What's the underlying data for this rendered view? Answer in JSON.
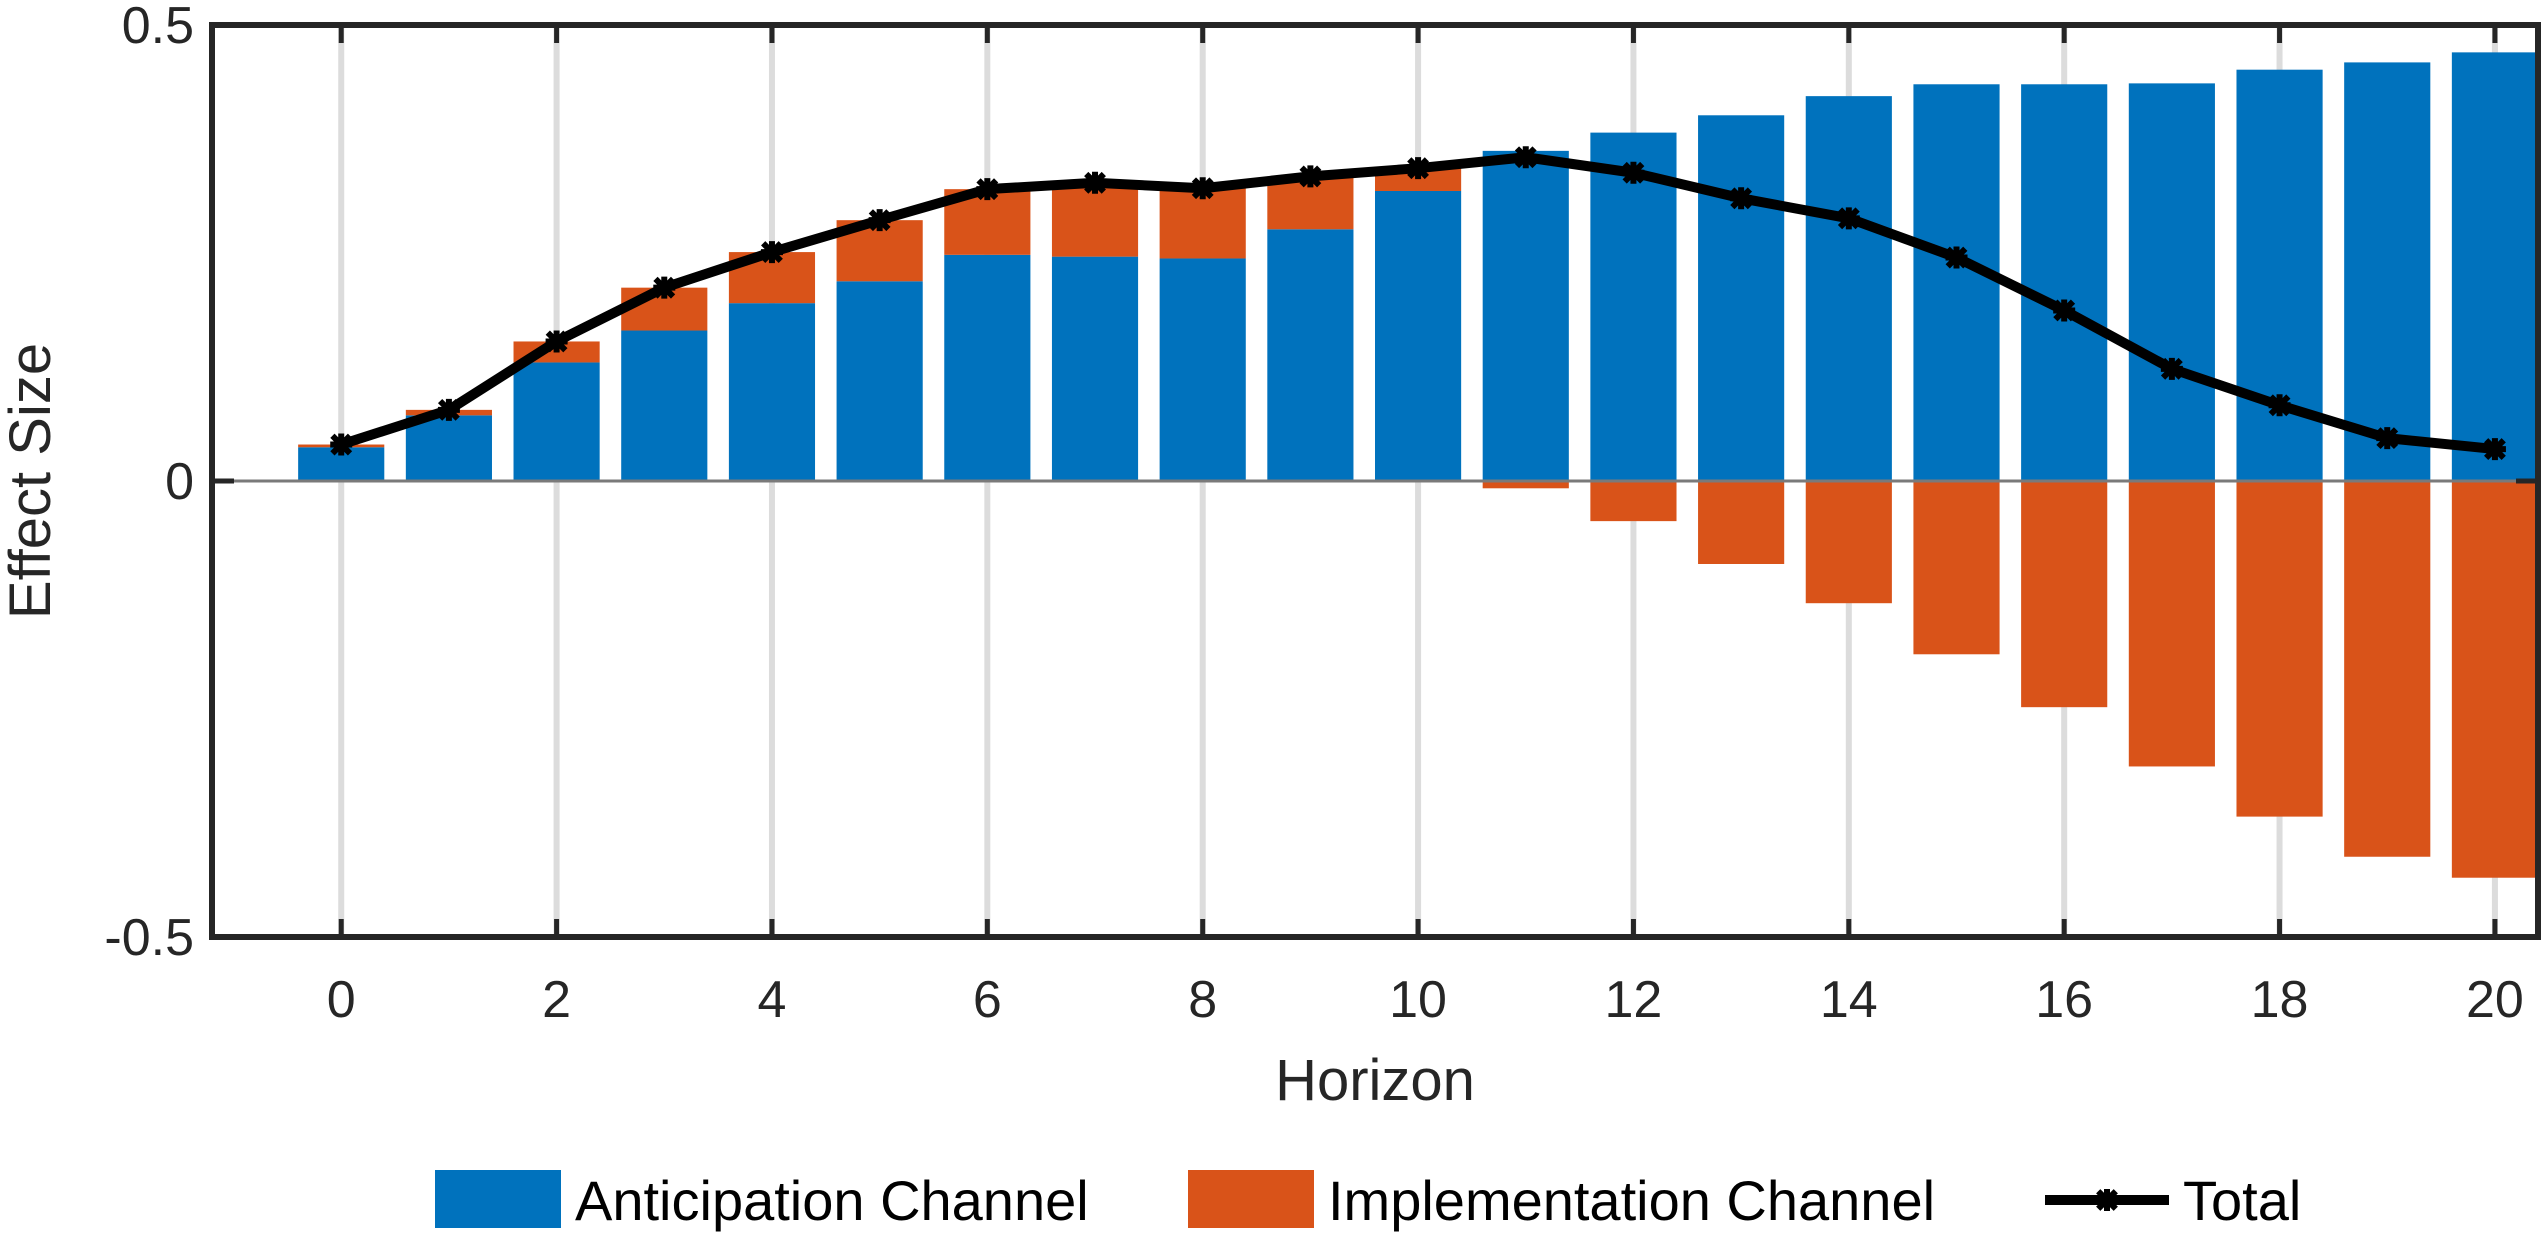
{
  "chart_data": {
    "type": "bar",
    "subtype": "stacked-bar-with-line",
    "title": "",
    "xlabel": "Horizon",
    "ylabel": "Effect Size",
    "x": [
      0,
      1,
      2,
      3,
      4,
      5,
      6,
      7,
      8,
      9,
      10,
      11,
      12,
      13,
      14,
      15,
      16,
      17,
      18,
      19,
      20
    ],
    "xlim": [
      -1.2,
      20.4
    ],
    "ylim": [
      -0.5,
      0.5
    ],
    "xticks": [
      0,
      2,
      4,
      6,
      8,
      10,
      12,
      14,
      16,
      18,
      20
    ],
    "xtick_labels": [
      "0",
      "2",
      "4",
      "6",
      "8",
      "10",
      "12",
      "14",
      "16",
      "18",
      "20"
    ],
    "yticks": [
      -0.5,
      0,
      0.5
    ],
    "ytick_labels": [
      "-0.5",
      "0",
      "0.5"
    ],
    "grid": "vertical",
    "legend_position": "bottom",
    "series": [
      {
        "name": "Anticipation Channel",
        "kind": "bar",
        "color": "#0072BD",
        "values": [
          0.037,
          0.072,
          0.13,
          0.165,
          0.195,
          0.219,
          0.248,
          0.246,
          0.244,
          0.276,
          0.318,
          0.362,
          0.382,
          0.401,
          0.422,
          0.435,
          0.435,
          0.436,
          0.451,
          0.459,
          0.47
        ]
      },
      {
        "name": "Implementation Channel",
        "kind": "bar",
        "color": "#D95319",
        "values": [
          0.003,
          0.006,
          0.023,
          0.047,
          0.056,
          0.067,
          0.072,
          0.081,
          0.077,
          0.058,
          0.025,
          -0.008,
          -0.044,
          -0.091,
          -0.134,
          -0.19,
          -0.248,
          -0.313,
          -0.368,
          -0.412,
          -0.435
        ]
      },
      {
        "name": "Total",
        "kind": "line",
        "color": "#000000",
        "marker": "star",
        "values": [
          0.04,
          0.078,
          0.153,
          0.212,
          0.251,
          0.286,
          0.32,
          0.327,
          0.321,
          0.334,
          0.343,
          0.355,
          0.338,
          0.31,
          0.288,
          0.245,
          0.187,
          0.123,
          0.083,
          0.047,
          0.035
        ]
      }
    ]
  }
}
